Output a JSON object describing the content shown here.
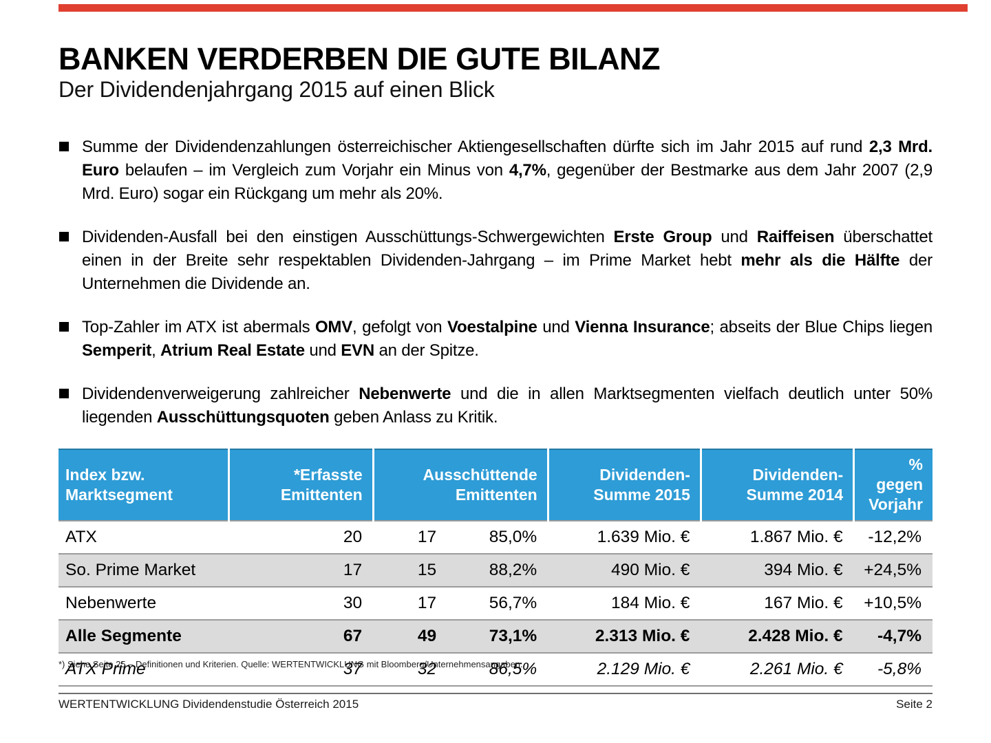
{
  "colors": {
    "red_bar": "#E04030",
    "header_blue": "#2E9CD6",
    "row_shade": "#DBDBDB",
    "row_border": "#9B9B9B"
  },
  "title": "BANKEN VERDERBEN DIE GUTE BILANZ",
  "subtitle": "Der Dividendenjahrgang 2015 auf einen Blick",
  "bullets": [
    [
      {
        "t": "Summe der Dividendenzahlungen österreichischer Aktiengesellschaften dürfte sich im Jahr 2015 auf rund ",
        "b": false
      },
      {
        "t": "2,3 Mrd. Euro",
        "b": true
      },
      {
        "t": " belaufen – im Vergleich zum Vorjahr ein Minus von ",
        "b": false
      },
      {
        "t": "4,7%",
        "b": true
      },
      {
        "t": ", gegenüber der Bestmarke aus dem Jahr 2007 (2,9 Mrd. Euro) sogar ein Rückgang um mehr als 20%.",
        "b": false
      }
    ],
    [
      {
        "t": "Dividenden-Ausfall bei den einstigen Ausschüttungs-Schwergewichten ",
        "b": false
      },
      {
        "t": "Erste Group",
        "b": true
      },
      {
        "t": " und ",
        "b": false
      },
      {
        "t": "Raiffeisen",
        "b": true
      },
      {
        "t": " überschattet einen in der Breite sehr respektablen Dividenden-Jahrgang – im Prime Market hebt ",
        "b": false
      },
      {
        "t": "mehr als die Hälfte",
        "b": true
      },
      {
        "t": " der Unternehmen die Dividende an.",
        "b": false
      }
    ],
    [
      {
        "t": "Top-Zahler im ATX ist abermals ",
        "b": false
      },
      {
        "t": "OMV",
        "b": true
      },
      {
        "t": ", gefolgt von ",
        "b": false
      },
      {
        "t": "Voestalpine",
        "b": true
      },
      {
        "t": " und ",
        "b": false
      },
      {
        "t": "Vienna Insurance",
        "b": true
      },
      {
        "t": "; abseits der Blue Chips liegen ",
        "b": false
      },
      {
        "t": "Semperit",
        "b": true
      },
      {
        "t": ", ",
        "b": false
      },
      {
        "t": "Atrium Real Estate",
        "b": true
      },
      {
        "t": " und ",
        "b": false
      },
      {
        "t": "EVN",
        "b": true
      },
      {
        "t": " an der Spitze.",
        "b": false
      }
    ],
    [
      {
        "t": "Dividendenverweigerung zahlreicher ",
        "b": false
      },
      {
        "t": "Nebenwerte",
        "b": true
      },
      {
        "t": " und die in allen Marktsegmenten vielfach deutlich unter 50% liegenden ",
        "b": false
      },
      {
        "t": "Ausschüttungsquoten",
        "b": true
      },
      {
        "t": " geben Anlass zu Kritik.",
        "b": false
      }
    ]
  ],
  "table": {
    "columns": [
      {
        "label": "Index bzw.\nMarktsegment",
        "align": "left",
        "span": 1
      },
      {
        "label": "*Erfasste\nEmittenten",
        "align": "right",
        "span": 1
      },
      {
        "label": "Ausschüttende\nEmittenten",
        "align": "right",
        "span": 2
      },
      {
        "label": "Dividenden-\nSumme 2015",
        "align": "right",
        "span": 1
      },
      {
        "label": "Dividenden-\nSumme 2014",
        "align": "right",
        "span": 1
      },
      {
        "label": "% gegen\nVorjahr",
        "align": "right",
        "span": 1
      }
    ],
    "rows": [
      {
        "style": "plain",
        "cells": [
          "ATX",
          "20",
          "17",
          "85,0%",
          "1.639 Mio. €",
          "1.867 Mio. €",
          "-12,2%"
        ]
      },
      {
        "style": "shaded",
        "cells": [
          "So. Prime Market",
          "17",
          "15",
          "88,2%",
          "490 Mio. €",
          "394 Mio. €",
          "+24,5%"
        ]
      },
      {
        "style": "plain",
        "cells": [
          "Nebenwerte",
          "30",
          "17",
          "56,7%",
          "184 Mio. €",
          "167 Mio. €",
          "+10,5%"
        ]
      },
      {
        "style": "shaded-bold",
        "cells": [
          "Alle Segmente",
          "67",
          "49",
          "73,1%",
          "2.313 Mio. €",
          "2.428 Mio. €",
          "-4,7%"
        ]
      },
      {
        "style": "italic",
        "cells": [
          "ATX Prime",
          "37",
          "32",
          "86,5%",
          "2.129 Mio. €",
          "2.261 Mio. €",
          "-5,8%"
        ]
      }
    ]
  },
  "footnote": "*) Siehe Seite 25 – Definitionen und Kriterien. Quelle: WERTENTWICKLUNG mit Bloomberg/Unternehmensangaben.",
  "footer": {
    "left": "WERTENTWICKLUNG Dividendenstudie Österreich 2015",
    "right": "Seite 2"
  }
}
